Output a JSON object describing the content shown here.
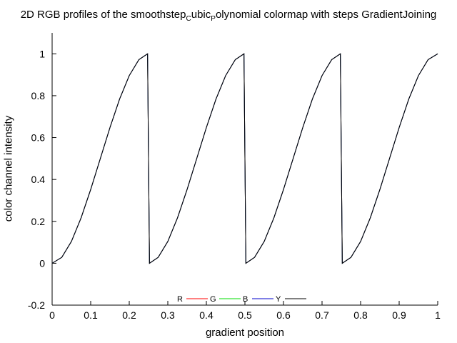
{
  "chart_data": {
    "type": "line",
    "title_main": "2D RGB profiles of the smoothstep",
    "title_sub1": "C",
    "title_mid": "ubic",
    "title_sub2": "P",
    "title_end": "olynomial colormap with steps GradientJoining",
    "xlabel": "gradient position",
    "ylabel": "color channel intensity",
    "xlim": [
      0,
      1
    ],
    "ylim": [
      -0.2,
      1.1
    ],
    "x_ticks": [
      "0",
      "0.1",
      "0.2",
      "0.3",
      "0.4",
      "0.5",
      "0.6",
      "0.7",
      "0.8",
      "0.9",
      "1"
    ],
    "y_ticks": [
      "-0.2",
      "0",
      "0.2",
      "0.4",
      "0.6",
      "0.8",
      "1"
    ],
    "legend_position": "bottom-center",
    "series": [
      {
        "name": "R",
        "color": "#ff0000",
        "x": [
          0,
          0.025,
          0.05,
          0.075,
          0.1,
          0.125,
          0.15,
          0.175,
          0.2,
          0.225,
          0.2475,
          0.25,
          0.2525,
          0.275,
          0.3,
          0.325,
          0.35,
          0.375,
          0.4,
          0.425,
          0.45,
          0.475,
          0.4975,
          0.5,
          0.5025,
          0.525,
          0.55,
          0.575,
          0.6,
          0.625,
          0.65,
          0.675,
          0.7,
          0.725,
          0.7475,
          0.75,
          0.7525,
          0.775,
          0.8,
          0.825,
          0.85,
          0.875,
          0.9,
          0.925,
          0.95,
          0.975,
          1
        ],
        "y": [
          0,
          0.028,
          0.104,
          0.216,
          0.352,
          0.5,
          0.648,
          0.784,
          0.896,
          0.972,
          1,
          0.5,
          0,
          0.028,
          0.104,
          0.216,
          0.352,
          0.5,
          0.648,
          0.784,
          0.896,
          0.972,
          1,
          0.5,
          0,
          0.028,
          0.104,
          0.216,
          0.352,
          0.5,
          0.648,
          0.784,
          0.896,
          0.972,
          1,
          0.5,
          0,
          0.028,
          0.104,
          0.216,
          0.352,
          0.5,
          0.648,
          0.784,
          0.896,
          0.972,
          1
        ]
      },
      {
        "name": "G",
        "color": "#00dd00",
        "x": [
          0,
          0.025,
          0.05,
          0.075,
          0.1,
          0.125,
          0.15,
          0.175,
          0.2,
          0.225,
          0.2475,
          0.25,
          0.2525,
          0.275,
          0.3,
          0.325,
          0.35,
          0.375,
          0.4,
          0.425,
          0.45,
          0.475,
          0.4975,
          0.5,
          0.5025,
          0.525,
          0.55,
          0.575,
          0.6,
          0.625,
          0.65,
          0.675,
          0.7,
          0.725,
          0.7475,
          0.75,
          0.7525,
          0.775,
          0.8,
          0.825,
          0.85,
          0.875,
          0.9,
          0.925,
          0.95,
          0.975,
          1
        ],
        "y": [
          0,
          0.028,
          0.104,
          0.216,
          0.352,
          0.5,
          0.648,
          0.784,
          0.896,
          0.972,
          1,
          0.5,
          0,
          0.028,
          0.104,
          0.216,
          0.352,
          0.5,
          0.648,
          0.784,
          0.896,
          0.972,
          1,
          0.5,
          0,
          0.028,
          0.104,
          0.216,
          0.352,
          0.5,
          0.648,
          0.784,
          0.896,
          0.972,
          1,
          0.5,
          0,
          0.028,
          0.104,
          0.216,
          0.352,
          0.5,
          0.648,
          0.784,
          0.896,
          0.972,
          1
        ]
      },
      {
        "name": "B",
        "color": "#0000cc",
        "x": [
          0,
          0.025,
          0.05,
          0.075,
          0.1,
          0.125,
          0.15,
          0.175,
          0.2,
          0.225,
          0.2475,
          0.25,
          0.2525,
          0.275,
          0.3,
          0.325,
          0.35,
          0.375,
          0.4,
          0.425,
          0.45,
          0.475,
          0.4975,
          0.5,
          0.5025,
          0.525,
          0.55,
          0.575,
          0.6,
          0.625,
          0.65,
          0.675,
          0.7,
          0.725,
          0.7475,
          0.75,
          0.7525,
          0.775,
          0.8,
          0.825,
          0.85,
          0.875,
          0.9,
          0.925,
          0.95,
          0.975,
          1
        ],
        "y": [
          0,
          0.028,
          0.104,
          0.216,
          0.352,
          0.5,
          0.648,
          0.784,
          0.896,
          0.972,
          1,
          0.5,
          0,
          0.028,
          0.104,
          0.216,
          0.352,
          0.5,
          0.648,
          0.784,
          0.896,
          0.972,
          1,
          0.5,
          0,
          0.028,
          0.104,
          0.216,
          0.352,
          0.5,
          0.648,
          0.784,
          0.896,
          0.972,
          1,
          0.5,
          0,
          0.028,
          0.104,
          0.216,
          0.352,
          0.5,
          0.648,
          0.784,
          0.896,
          0.972,
          1
        ]
      },
      {
        "name": "Y",
        "color": "#000000",
        "x": [
          0,
          0.025,
          0.05,
          0.075,
          0.1,
          0.125,
          0.15,
          0.175,
          0.2,
          0.225,
          0.2475,
          0.25,
          0.2525,
          0.275,
          0.3,
          0.325,
          0.35,
          0.375,
          0.4,
          0.425,
          0.45,
          0.475,
          0.4975,
          0.5,
          0.5025,
          0.525,
          0.55,
          0.575,
          0.6,
          0.625,
          0.65,
          0.675,
          0.7,
          0.725,
          0.7475,
          0.75,
          0.7525,
          0.775,
          0.8,
          0.825,
          0.85,
          0.875,
          0.9,
          0.925,
          0.95,
          0.975,
          1
        ],
        "y": [
          0,
          0.028,
          0.104,
          0.216,
          0.352,
          0.5,
          0.648,
          0.784,
          0.896,
          0.972,
          1,
          0.5,
          0,
          0.028,
          0.104,
          0.216,
          0.352,
          0.5,
          0.648,
          0.784,
          0.896,
          0.972,
          1,
          0.5,
          0,
          0.028,
          0.104,
          0.216,
          0.352,
          0.5,
          0.648,
          0.784,
          0.896,
          0.972,
          1,
          0.5,
          0,
          0.028,
          0.104,
          0.216,
          0.352,
          0.5,
          0.648,
          0.784,
          0.896,
          0.972,
          1
        ]
      }
    ]
  }
}
